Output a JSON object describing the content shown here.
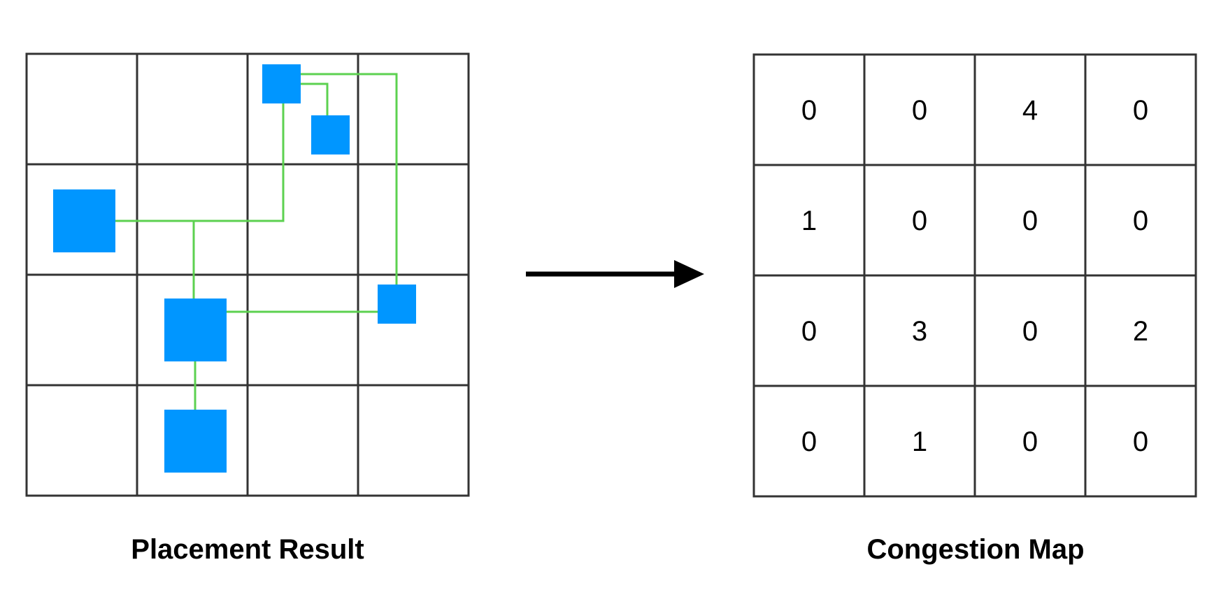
{
  "placement": {
    "caption": "Placement Result",
    "grid_rows": 4,
    "grid_cols": 4,
    "cell_color": "#ffffff",
    "line_color": "#333333",
    "module_color": "#0096FF",
    "wire_color": "#5CD150"
  },
  "congestion": {
    "caption": "Congestion Map",
    "values": [
      [
        0,
        0,
        4,
        0
      ],
      [
        1,
        0,
        0,
        0
      ],
      [
        0,
        3,
        0,
        2
      ],
      [
        0,
        1,
        0,
        0
      ]
    ]
  },
  "arrow": {
    "color": "#000000",
    "direction": "right"
  }
}
